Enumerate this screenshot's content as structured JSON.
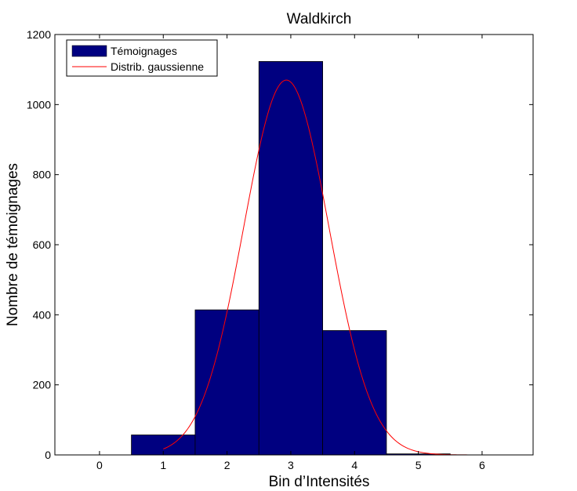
{
  "chart_data": {
    "type": "bar",
    "title": "Waldkirch",
    "xlabel": "Bin d’Intensités",
    "ylabel": "Nombre de témoignages",
    "xlim": [
      -0.7,
      6.8
    ],
    "ylim": [
      0,
      1200
    ],
    "xticks": [
      0,
      1,
      2,
      3,
      4,
      5,
      6
    ],
    "yticks": [
      0,
      200,
      400,
      600,
      800,
      1000,
      1200
    ],
    "grid": false,
    "legend": {
      "position": "top-left",
      "entries": [
        "Témoignages",
        "Distrib. gaussienne"
      ]
    },
    "bar_width": 1,
    "series": [
      {
        "name": "Témoignages",
        "kind": "bar",
        "color": "#000080",
        "x": [
          0,
          1,
          2,
          3,
          4,
          5,
          6
        ],
        "values": [
          0,
          57,
          414,
          1123,
          355,
          3,
          0
        ]
      },
      {
        "name": "Distrib. gaussienne",
        "kind": "line",
        "color": "#ff0000",
        "mean": 2.93,
        "sigma": 0.67,
        "peak": 1070,
        "x_range": [
          1,
          5.8
        ]
      }
    ]
  }
}
